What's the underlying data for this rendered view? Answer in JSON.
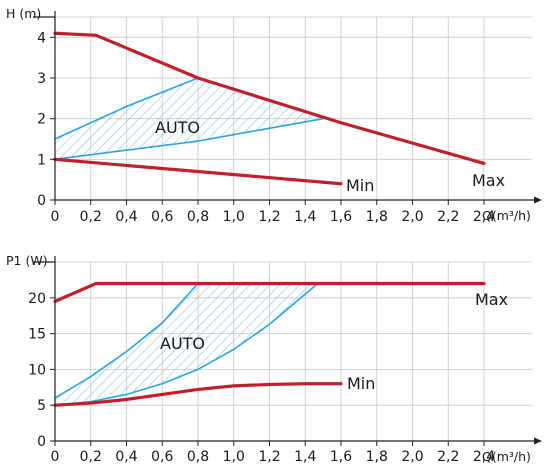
{
  "colors": {
    "curve": "#c0202c",
    "auto_band": "#2aa3e0",
    "hatch": "#7cc3e8",
    "grid": "#c8c8c8",
    "axis": "#222222",
    "text": "#1a1a1a"
  },
  "chart_data": [
    {
      "type": "line",
      "title": "",
      "ylabel": "H (m)",
      "xlabel": "Q(m³/h)",
      "xlim": [
        0,
        2.6
      ],
      "ylim": [
        0,
        4.5
      ],
      "x_ticks": [
        0,
        0.2,
        0.4,
        0.6,
        0.8,
        1.0,
        1.2,
        1.4,
        1.6,
        1.8,
        2.0,
        2.2,
        2.4
      ],
      "x_tick_labels": [
        "0",
        "0,2",
        "0,4",
        "0,6",
        "0,8",
        "1,0",
        "1,2",
        "1,4",
        "1,6",
        "1,8",
        "2,0",
        "2,2",
        "2,4"
      ],
      "y_ticks": [
        0,
        1,
        2,
        3,
        4
      ],
      "y_tick_labels": [
        "0",
        "1",
        "2",
        "3",
        "4"
      ],
      "grid": true,
      "series": [
        {
          "name": "Max",
          "x": [
            0,
            0.23,
            0.8,
            1.6,
            2.4
          ],
          "y": [
            4.1,
            4.05,
            3.0,
            1.9,
            0.9
          ]
        },
        {
          "name": "Min",
          "x": [
            0,
            1.6
          ],
          "y": [
            1.0,
            0.4
          ]
        }
      ],
      "auto_region": {
        "label": "AUTO",
        "upper": {
          "x": [
            0,
            0.4,
            0.8
          ],
          "y": [
            1.5,
            2.3,
            3.0
          ]
        },
        "lower": {
          "x": [
            0,
            0.8,
            1.5
          ],
          "y": [
            1.0,
            1.45,
            2.0
          ]
        }
      }
    },
    {
      "type": "line",
      "title": "",
      "ylabel": "P1 (W)",
      "xlabel": "Q(m³/h)",
      "xlim": [
        0,
        2.6
      ],
      "ylim": [
        0,
        25
      ],
      "x_ticks": [
        0,
        0.2,
        0.4,
        0.6,
        0.8,
        1.0,
        1.2,
        1.4,
        1.6,
        1.8,
        2.0,
        2.2,
        2.4
      ],
      "x_tick_labels": [
        "0",
        "0,2",
        "0,4",
        "0,6",
        "0,8",
        "1,0",
        "1,2",
        "1,4",
        "1,6",
        "1,8",
        "2,0",
        "2,2",
        "2,4"
      ],
      "y_ticks": [
        0,
        5,
        10,
        15,
        20
      ],
      "y_tick_labels": [
        "0",
        "5",
        "10",
        "15",
        "20"
      ],
      "grid": true,
      "series": [
        {
          "name": "Max",
          "x": [
            0,
            0.23,
            2.4
          ],
          "y": [
            19.5,
            22.0,
            22.0
          ]
        },
        {
          "name": "Min",
          "x": [
            0,
            0.2,
            0.4,
            0.6,
            0.8,
            1.0,
            1.2,
            1.4,
            1.6
          ],
          "y": [
            5.0,
            5.3,
            5.8,
            6.5,
            7.2,
            7.7,
            7.9,
            8.0,
            8.0
          ]
        }
      ],
      "auto_region": {
        "label": "AUTO",
        "upper": {
          "x": [
            0,
            0.2,
            0.4,
            0.6,
            0.8
          ],
          "y": [
            6.0,
            9.0,
            12.5,
            16.5,
            22.0
          ]
        },
        "lower": {
          "x": [
            0,
            0.2,
            0.4,
            0.6,
            0.8,
            1.0,
            1.2,
            1.47
          ],
          "y": [
            5.0,
            5.5,
            6.5,
            8.0,
            10.0,
            12.8,
            16.3,
            22.0
          ]
        }
      }
    }
  ]
}
